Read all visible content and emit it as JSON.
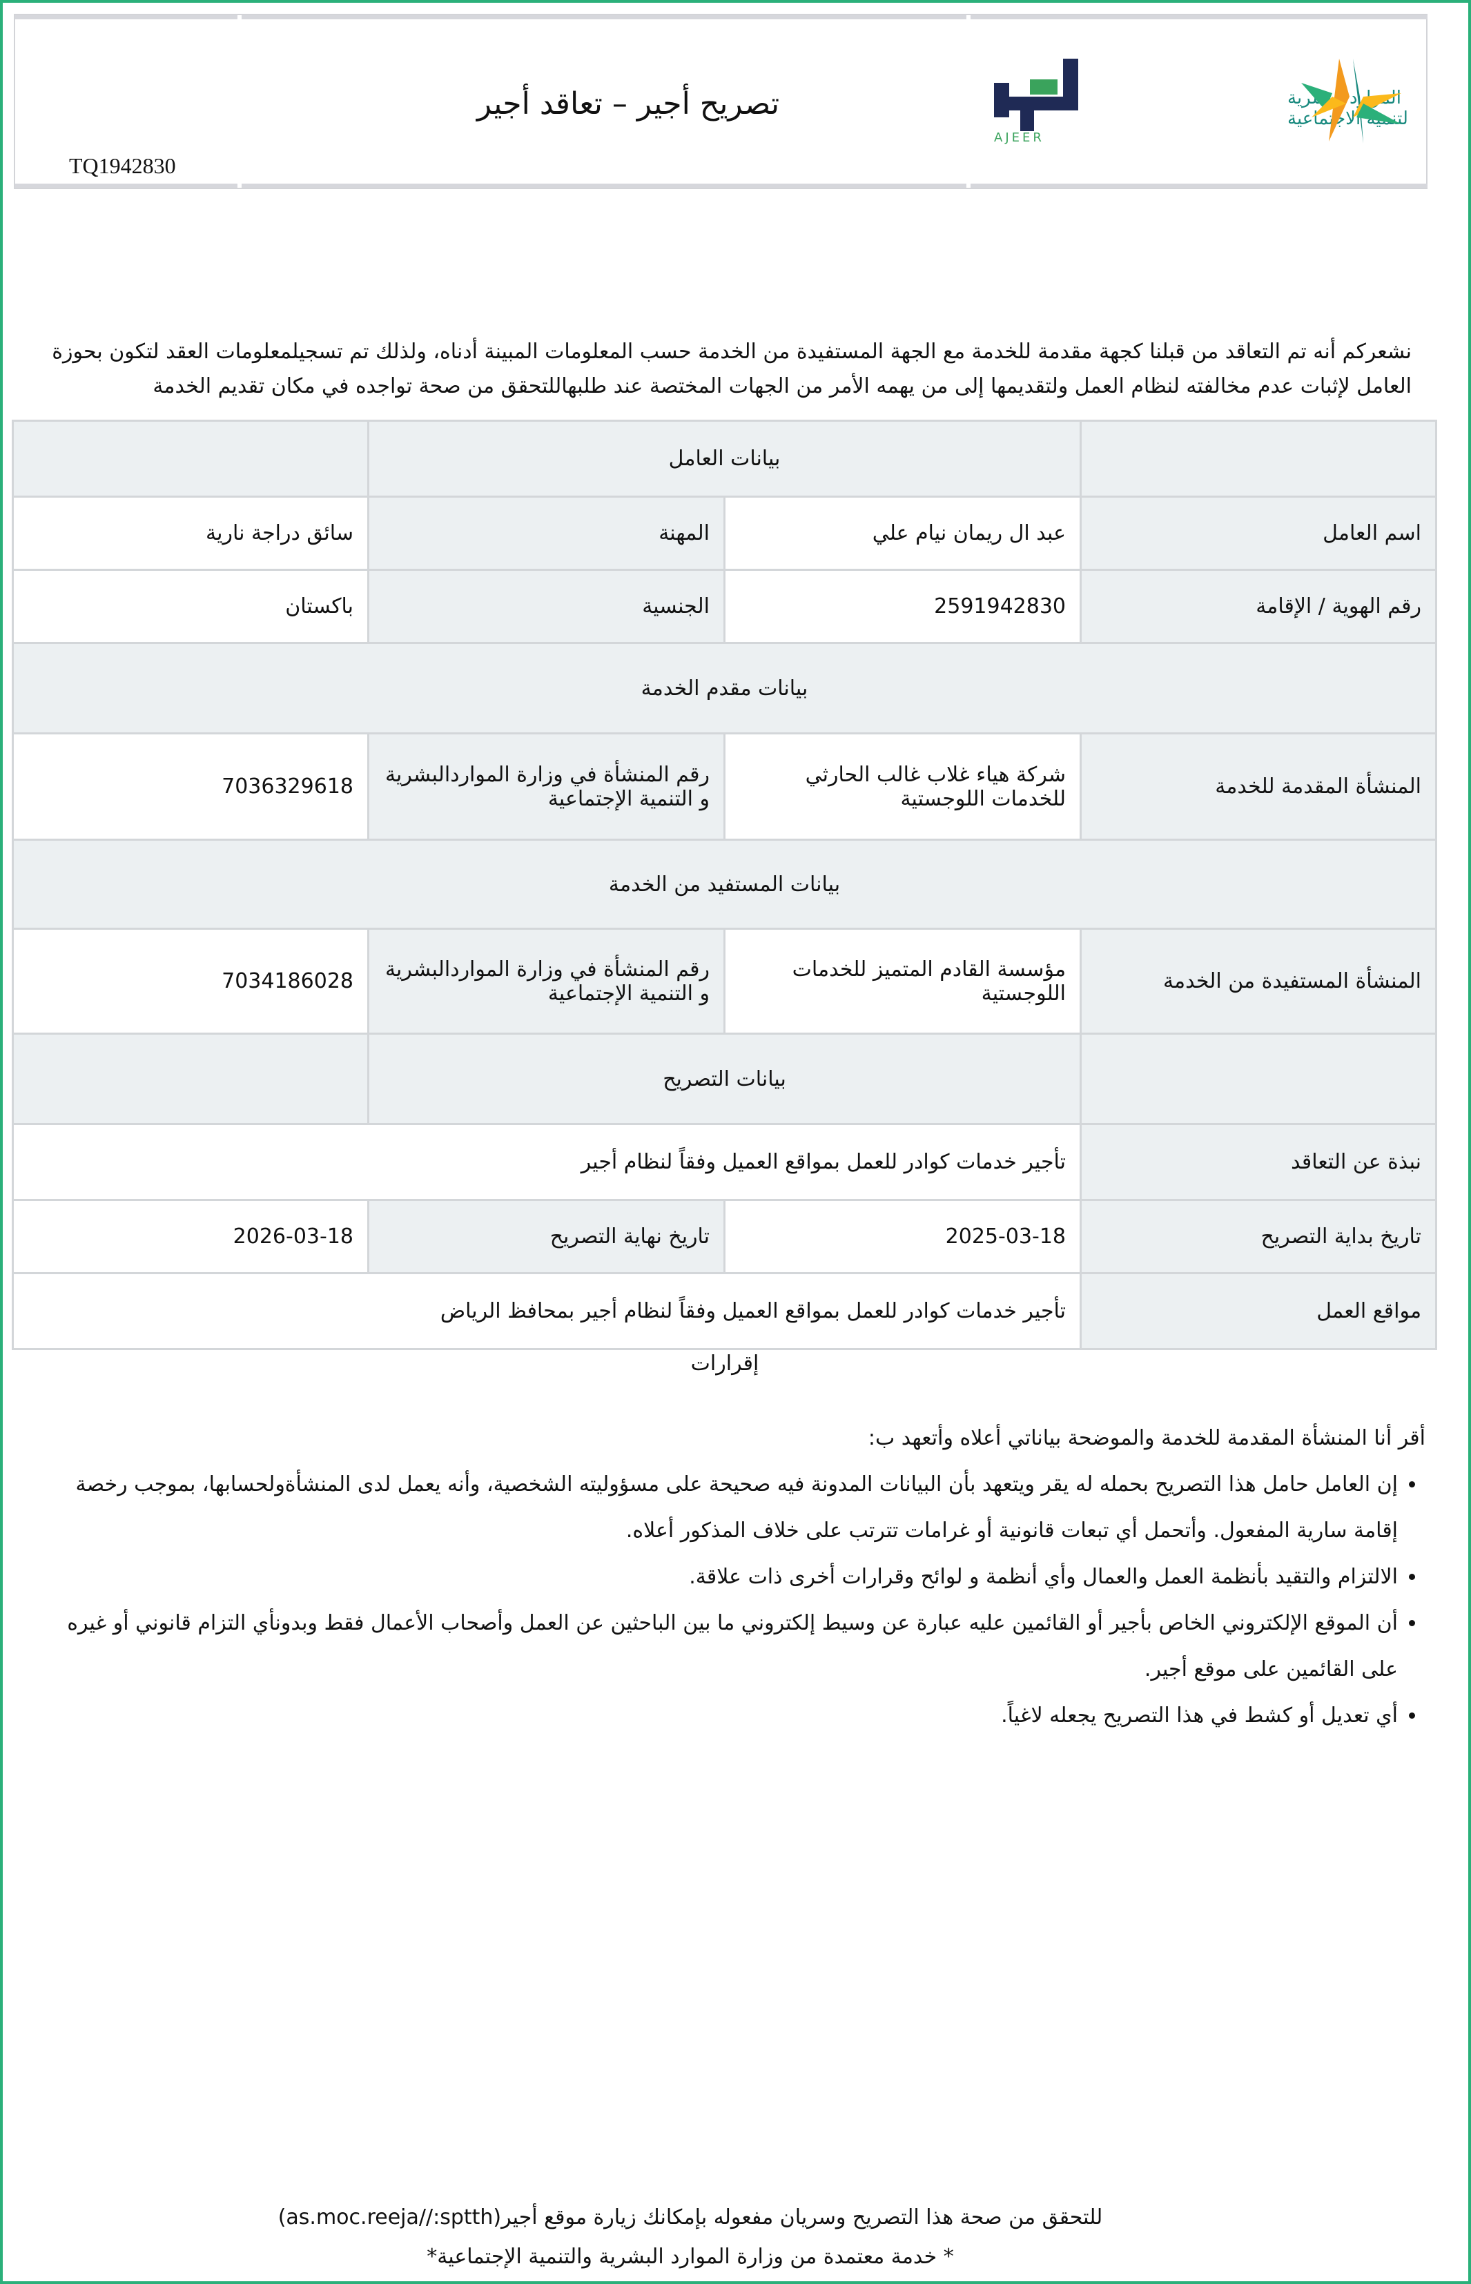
{
  "header": {
    "title": "تصريح أجير –  تعاقد أجير",
    "reference": "TQ1942830",
    "ministry_logo_text": "الموارد البشرية والتنمية الاجتماعية",
    "ajeer_logo_text": "أجير",
    "ajeer_logo_latin": "AJEER",
    "colors": {
      "green": "#2bb07a",
      "navy": "#1f2a55",
      "orange": "#f39a1e",
      "yellow": "#fbb91b",
      "teal": "#1a8a7f"
    }
  },
  "intro": "نشعركم أنه تم التعاقد من قبلنا كجهة مقدمة للخدمة مع الجهة المستفيدة من الخدمة حسب المعلومات المبينة أدناه، ولذلك تم تسجيلمعلومات العقد لتكون بحوزة العامل لإثبات عدم مخالفته لنظام العمل ولتقديمها إلى من يهمه الأمر من الجهات المختصة عند طلبهاللتحقق من صحة تواجده في مكان تقديم الخدمة",
  "worker": {
    "section": "بيانات العامل",
    "name_label": "اسم العامل",
    "name": "عبد ال ريمان نيام علي",
    "profession_label": "المهنة",
    "profession": "سائق دراجة نارية",
    "id_label": "رقم الهوية / الإقامة",
    "id": "2591942830",
    "nationality_label": "الجنسية",
    "nationality": "باكستان"
  },
  "provider": {
    "section": "بيانات مقدم الخدمة",
    "org_label": "المنشأة المقدمة للخدمة",
    "org": "شركة هياء غلاب غالب الحارثي للخدمات اللوجستية",
    "num_label": "رقم المنشأة في وزارة المواردالبشرية و التنمية الإجتماعية",
    "num": "7036329618"
  },
  "beneficiary": {
    "section": "بيانات المستفيد من الخدمة",
    "org_label": "المنشأة المستفيدة من الخدمة",
    "org": "مؤسسة القادم المتميز للخدمات اللوجستية",
    "num_label": "رقم المنشأة في وزارة المواردالبشرية و التنمية الإجتماعية",
    "num": "7034186028"
  },
  "permit": {
    "section": "بيانات التصريح",
    "summary_label": "نبذة عن التعاقد",
    "summary": "تأجير خدمات كوادر للعمل بمواقع العميل وفقاً لنظام أجير",
    "start_label": "تاريخ بداية التصريح",
    "start": "2025-03-18",
    "end_label": "تاريخ نهاية التصريح",
    "end": "2026-03-18",
    "locations_label": "مواقع العمل",
    "locations": "تأجير خدمات كوادر للعمل بمواقع العميل وفقاً لنظام أجير بمحافظ الرياض"
  },
  "declarations": {
    "title": "إقرارات",
    "intro": "أقر أنا المنشأة المقدمة للخدمة والموضحة بياناتي أعلاه وأتعهد ب:",
    "items": [
      "إن العامل حامل هذا التصريح بحمله له يقر ويتعهد بأن البيانات المدونة فيه صحيحة على مسؤوليته الشخصية، وأنه يعمل لدى المنشأةولحسابها، بموجب رخصة إقامة سارية المفعول. وأتحمل أي تبعات قانونية أو غرامات تترتب على خلاف المذكور أعلاه.",
      "الالتزام والتقيد بأنظمة العمل والعمال وأي أنظمة و لوائح وقرارات أخرى ذات علاقة.",
      "أن الموقع الإلكتروني الخاص بأجير أو القائمين عليه عبارة عن وسيط إلكتروني ما بين الباحثين عن العمل وأصحاب الأعمال فقط وبدونأي التزام قانوني أو غيره على القائمين على موقع أجير.",
      "أي تعديل أو كشط في هذا التصريح يجعله لاغياً."
    ]
  },
  "footer": {
    "verify": "للتحقق من صحة هذا التصريح وسريان مفعوله بإمكانك زيارة موقع أجير(as.moc.reeja//:sptth)",
    "approved": "* خدمة معتمدة من وزارة الموارد البشرية والتنمية الإجتماعية*"
  }
}
